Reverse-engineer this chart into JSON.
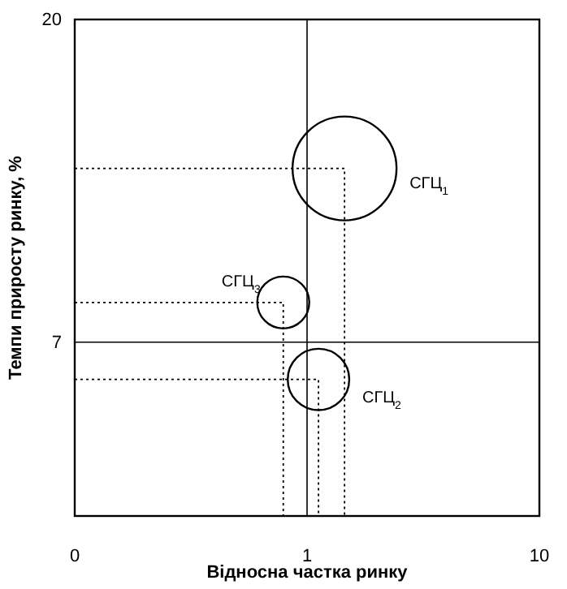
{
  "chart_data": {
    "type": "bubble",
    "xlabel": "Відносна частка ринку",
    "ylabel": "Темпи приросту ринку, %",
    "log": "x",
    "xlim": [
      0.1,
      10
    ],
    "xticks": [
      {
        "value": 0.1,
        "label": "0"
      },
      1,
      10
    ],
    "ylim": [
      0,
      20
    ],
    "yticks": [
      7,
      20
    ],
    "grid": false,
    "ref_lines": [
      {
        "axis": "x",
        "value": 1,
        "color": "#000000"
      },
      {
        "axis": "y",
        "value": 7,
        "color": "#000000"
      }
    ],
    "series": [
      {
        "name": "СГЦ$_{1}$",
        "color": "#000000",
        "x": [
          1.45
        ],
        "values": [
          14
        ],
        "sizes": [
          1
        ]
      },
      {
        "name": "СГЦ$_{2}$",
        "color": "#000000",
        "x": [
          1.12
        ],
        "values": [
          5.5
        ],
        "sizes": [
          0.35
        ]
      },
      {
        "name": "СГЦ$_{3}$",
        "color": "#000000",
        "x": [
          0.79
        ],
        "values": [
          8.6
        ],
        "sizes": [
          0.25
        ]
      },
      {
        "type": "line",
        "line_style": "dotted",
        "color": "#000000",
        "x": [
          0.1,
          1.45,
          1.45
        ],
        "values": [
          14,
          14,
          0
        ]
      },
      {
        "type": "line",
        "line_style": "dotted",
        "color": "#000000",
        "x": [
          0.1,
          1.12,
          1.12
        ],
        "values": [
          5.5,
          5.5,
          0
        ]
      },
      {
        "type": "line",
        "line_style": "dotted",
        "color": "#000000",
        "x": [
          0.1,
          0.79,
          0.79
        ],
        "values": [
          8.6,
          8.6,
          0
        ]
      }
    ]
  }
}
